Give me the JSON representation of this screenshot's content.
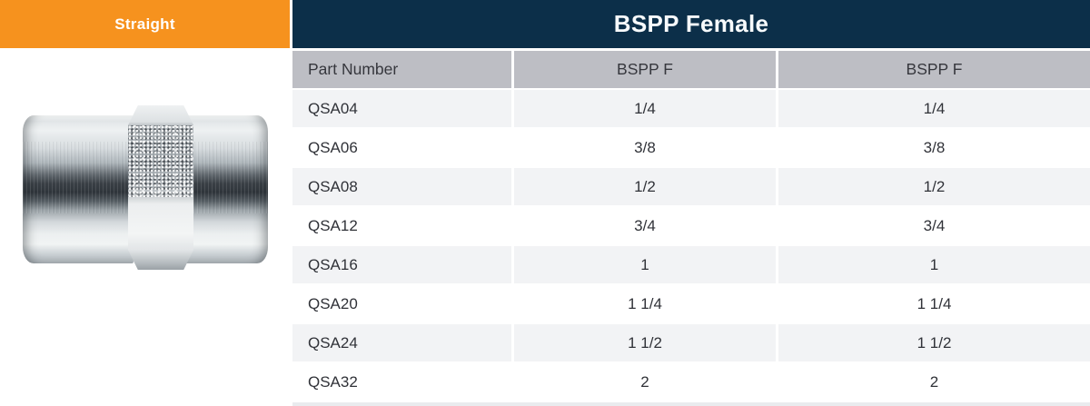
{
  "tab": {
    "label": "Straight"
  },
  "title_bar": {
    "title": "BSPP Female"
  },
  "figure": {
    "icon": "straight-coupling-photo"
  },
  "colors": {
    "orange": "#F6921E",
    "navy": "#0C2F49",
    "header_gray": "#BDBEC4",
    "row_shaded": "#F2F3F5",
    "row_white": "#FFFFFF",
    "bottom_strip": "#E9EBEE",
    "text_dark": "#303238"
  },
  "table": {
    "columns": [
      "Part Number",
      "BSPP F",
      "BSPP F"
    ],
    "rows": [
      {
        "part": "QSA04",
        "bspp_f_1": "1/4",
        "bspp_f_2": "1/4"
      },
      {
        "part": "QSA06",
        "bspp_f_1": "3/8",
        "bspp_f_2": "3/8"
      },
      {
        "part": "QSA08",
        "bspp_f_1": "1/2",
        "bspp_f_2": "1/2"
      },
      {
        "part": "QSA12",
        "bspp_f_1": "3/4",
        "bspp_f_2": "3/4"
      },
      {
        "part": "QSA16",
        "bspp_f_1": "1",
        "bspp_f_2": "1"
      },
      {
        "part": "QSA20",
        "bspp_f_1": "1 1/4",
        "bspp_f_2": "1 1/4"
      },
      {
        "part": "QSA24",
        "bspp_f_1": "1 1/2",
        "bspp_f_2": "1 1/2"
      },
      {
        "part": "QSA32",
        "bspp_f_1": "2",
        "bspp_f_2": "2"
      }
    ]
  }
}
